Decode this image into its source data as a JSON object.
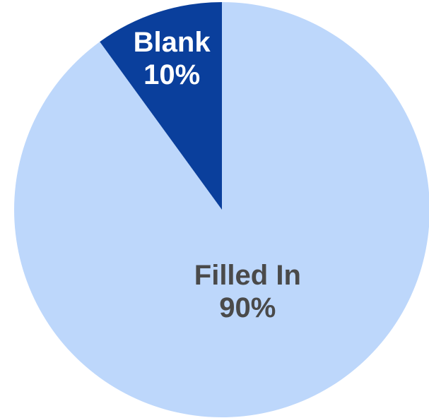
{
  "chart_data": {
    "type": "pie",
    "title": "",
    "start_angle_deg": 0,
    "direction": "clockwise",
    "slices": [
      {
        "label": "Filled In",
        "value": 90,
        "value_label": "90%",
        "color": "#bdd7fb",
        "text_color": "#4a4a4a"
      },
      {
        "label": "Blank",
        "value": 10,
        "value_label": "10%",
        "color": "#0a3f9c",
        "text_color": "#ffffff"
      }
    ]
  }
}
